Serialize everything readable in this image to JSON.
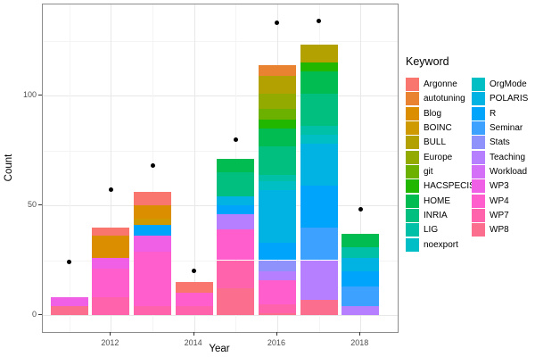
{
  "figure": {
    "y_axis_title": "Count",
    "x_axis_title": "Year"
  },
  "legend": {
    "title": "Keyword",
    "items": [
      {
        "label": "Argonne",
        "color": "#F8766D"
      },
      {
        "label": "autotuning",
        "color": "#EA8331"
      },
      {
        "label": "Blog",
        "color": "#DB8E00"
      },
      {
        "label": "BOINC",
        "color": "#CE9A00"
      },
      {
        "label": "BULL",
        "color": "#B2A100"
      },
      {
        "label": "Europe",
        "color": "#93AA00"
      },
      {
        "label": "git",
        "color": "#6CB100"
      },
      {
        "label": "HACSPECIS",
        "color": "#21B700"
      },
      {
        "label": "HOME",
        "color": "#00BC51"
      },
      {
        "label": "INRIA",
        "color": "#00BF7F"
      },
      {
        "label": "LIG",
        "color": "#00C0A8"
      },
      {
        "label": "noexport",
        "color": "#00BEC5"
      },
      {
        "label": "OrgMode",
        "color": "#00BFC4"
      },
      {
        "label": "POLARIS",
        "color": "#00B3E3"
      },
      {
        "label": "R",
        "color": "#00A5FB"
      },
      {
        "label": "Seminar",
        "color": "#3DA1FF"
      },
      {
        "label": "Stats",
        "color": "#8F92FB"
      },
      {
        "label": "Teaching",
        "color": "#B57FFF"
      },
      {
        "label": "Workload",
        "color": "#D46FF8"
      },
      {
        "label": "WP3",
        "color": "#F060E6"
      },
      {
        "label": "WP4",
        "color": "#FF5ECC"
      },
      {
        "label": "WP7",
        "color": "#FF63AC"
      },
      {
        "label": "WP8",
        "color": "#FC6E8D"
      }
    ]
  },
  "chart_data": {
    "type": "bar",
    "subtype": "stacked-bars-with-points",
    "xlabel": "Year",
    "ylabel": "Count",
    "x_tick_labels": [
      "2012",
      "2014",
      "2016",
      "2018"
    ],
    "x_tick_years": [
      2012,
      2014,
      2016,
      2018
    ],
    "y_tick_labels": [
      "0",
      "50",
      "100"
    ],
    "y_major_ticks": [
      0,
      50,
      100
    ],
    "y_minor_ticks": [
      25,
      75,
      125
    ],
    "ylim": [
      0,
      141
    ],
    "x_years": [
      2011,
      2012,
      2013,
      2014,
      2015,
      2016,
      2017,
      2018
    ],
    "grid": true,
    "legend_position": "right",
    "bar_totals": [
      8,
      40,
      56,
      15,
      71,
      114,
      123,
      37
    ],
    "bars": [
      {
        "year": 2011,
        "segments": [
          {
            "keyword": "WP8",
            "value": 4
          },
          {
            "keyword": "WP3",
            "value": 4
          }
        ]
      },
      {
        "year": 2012,
        "segments": [
          {
            "keyword": "WP7",
            "value": 8
          },
          {
            "keyword": "WP4",
            "value": 13
          },
          {
            "keyword": "WP3",
            "value": 5
          },
          {
            "keyword": "Blog",
            "value": 10
          },
          {
            "keyword": "Argonne",
            "value": 4
          }
        ]
      },
      {
        "year": 2013,
        "segments": [
          {
            "keyword": "WP7",
            "value": 4
          },
          {
            "keyword": "WP4",
            "value": 25
          },
          {
            "keyword": "WP3",
            "value": 7
          },
          {
            "keyword": "R",
            "value": 5
          },
          {
            "keyword": "BOINC",
            "value": 3
          },
          {
            "keyword": "Blog",
            "value": 6
          },
          {
            "keyword": "Argonne",
            "value": 6
          }
        ]
      },
      {
        "year": 2014,
        "segments": [
          {
            "keyword": "WP7",
            "value": 4
          },
          {
            "keyword": "WP4",
            "value": 6
          },
          {
            "keyword": "Argonne",
            "value": 5
          }
        ]
      },
      {
        "year": 2015,
        "segments": [
          {
            "keyword": "WP8",
            "value": 12
          },
          {
            "keyword": "WP7",
            "value": 13
          },
          {
            "keyword": "WP4",
            "value": 14
          },
          {
            "keyword": "Teaching",
            "value": 7
          },
          {
            "keyword": "R",
            "value": 4
          },
          {
            "keyword": "POLARIS",
            "value": 4
          },
          {
            "keyword": "INRIA",
            "value": 11
          },
          {
            "keyword": "HOME",
            "value": 6
          }
        ]
      },
      {
        "year": 2016,
        "segments": [
          {
            "keyword": "WP8",
            "value": 1
          },
          {
            "keyword": "WP7",
            "value": 4
          },
          {
            "keyword": "WP4",
            "value": 11
          },
          {
            "keyword": "Teaching",
            "value": 4
          },
          {
            "keyword": "Stats",
            "value": 5
          },
          {
            "keyword": "R",
            "value": 8
          },
          {
            "keyword": "POLARIS",
            "value": 24
          },
          {
            "keyword": "OrgMode",
            "value": 4
          },
          {
            "keyword": "LIG",
            "value": 3
          },
          {
            "keyword": "INRIA",
            "value": 13
          },
          {
            "keyword": "HOME",
            "value": 8
          },
          {
            "keyword": "HACSPECIS",
            "value": 4
          },
          {
            "keyword": "git",
            "value": 5
          },
          {
            "keyword": "Europe",
            "value": 7
          },
          {
            "keyword": "BULL",
            "value": 8
          },
          {
            "keyword": "autotuning",
            "value": 5
          }
        ]
      },
      {
        "year": 2017,
        "segments": [
          {
            "keyword": "WP8",
            "value": 7
          },
          {
            "keyword": "Teaching",
            "value": 18
          },
          {
            "keyword": "Seminar",
            "value": 15
          },
          {
            "keyword": "R",
            "value": 19
          },
          {
            "keyword": "POLARIS",
            "value": 19
          },
          {
            "keyword": "OrgMode",
            "value": 4
          },
          {
            "keyword": "LIG",
            "value": 4
          },
          {
            "keyword": "INRIA",
            "value": 15
          },
          {
            "keyword": "HOME",
            "value": 10
          },
          {
            "keyword": "HACSPECIS",
            "value": 4
          },
          {
            "keyword": "BULL",
            "value": 8
          }
        ]
      },
      {
        "year": 2018,
        "segments": [
          {
            "keyword": "Teaching",
            "value": 4
          },
          {
            "keyword": "Seminar",
            "value": 9
          },
          {
            "keyword": "R",
            "value": 7
          },
          {
            "keyword": "POLARIS",
            "value": 6
          },
          {
            "keyword": "LIG",
            "value": 5
          },
          {
            "keyword": "HOME",
            "value": 6
          }
        ]
      }
    ],
    "points": [
      {
        "year": 2011,
        "value": 24
      },
      {
        "year": 2012,
        "value": 57
      },
      {
        "year": 2013,
        "value": 68
      },
      {
        "year": 2014,
        "value": 20
      },
      {
        "year": 2015,
        "value": 80
      },
      {
        "year": 2016,
        "value": 133
      },
      {
        "year": 2017,
        "value": 134
      },
      {
        "year": 2018,
        "value": 48
      }
    ]
  }
}
